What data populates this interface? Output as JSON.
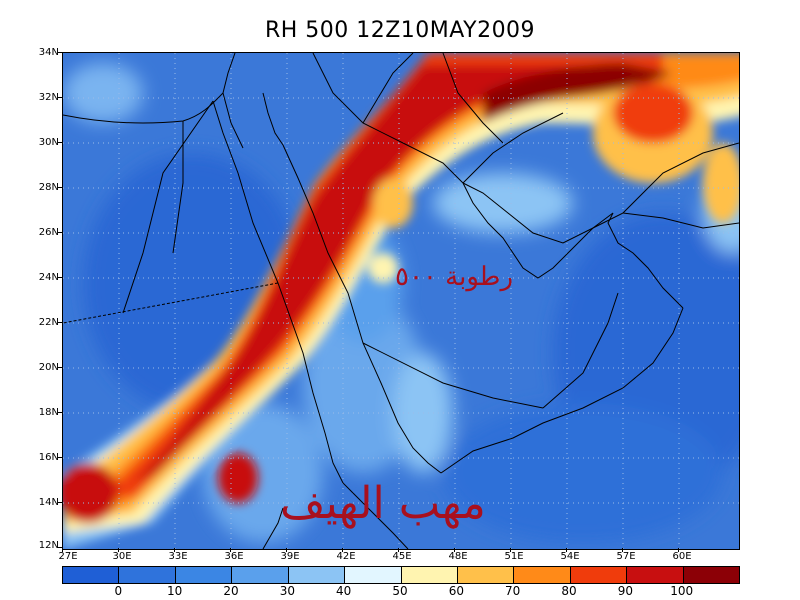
{
  "title": "RH 500 12Z10MAY2009",
  "y_labels": [
    "34N",
    "32N",
    "30N",
    "28N",
    "26N",
    "24N",
    "22N",
    "20N",
    "18N",
    "16N",
    "14N",
    "12N"
  ],
  "x_labels": [
    "27E",
    "30E",
    "33E",
    "36E",
    "39E",
    "42E",
    "45E",
    "48E",
    "51E",
    "54E",
    "57E",
    "60E"
  ],
  "annotation_arabic_1": "رطوبة ٥٠٠",
  "annotation_arabic_2": "مهب الهيف",
  "colorbar": {
    "labels": [
      "0",
      "10",
      "20",
      "30",
      "40",
      "50",
      "60",
      "70",
      "80",
      "90",
      "100"
    ],
    "colors": [
      "#1f5fd6",
      "#2f73dc",
      "#3b86e4",
      "#5aa0ec",
      "#8cc4f4",
      "#e2f6ff",
      "#fff4b0",
      "#ffc04a",
      "#ff8a18",
      "#f03c0c",
      "#c80f10",
      "#8c0006"
    ]
  },
  "map": {
    "background_color": "#3b78d8",
    "coastline_color": "#000000"
  }
}
